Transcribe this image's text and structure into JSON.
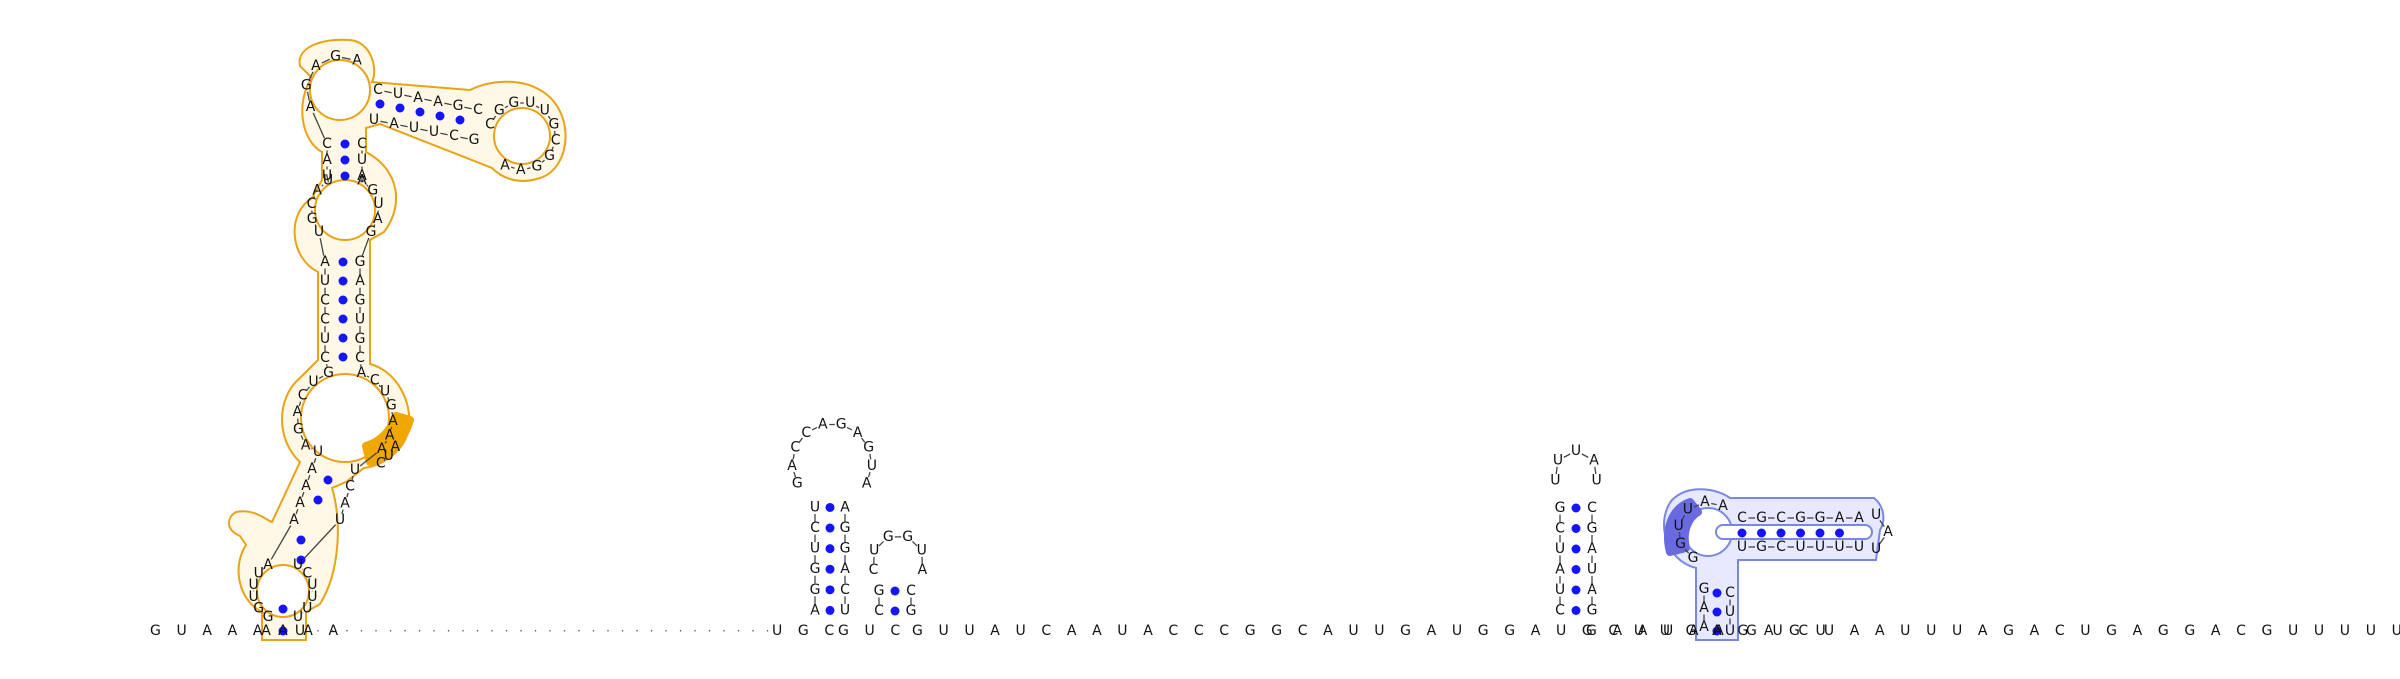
{
  "colors": {
    "pair_dot": "#1414ff",
    "backbone": "#444444",
    "gold_outline": "#e8a317",
    "gold_fill": "#fff8e6",
    "gold_highlight": "#f0a800",
    "blue_outline": "#7a86e6",
    "blue_fill": "#e6e9ff",
    "blue_highlight": "#6a6ae0",
    "text": "#111111"
  },
  "baseline": {
    "left_tail": "G U A A A A A A",
    "left_stem_base": [
      "A",
      "U"
    ],
    "gap_before_helix1": "U G C",
    "helix1_join": "G U C",
    "mid_run_1": "G U U A U C A A U A C C C G G C A U U G A U G G A U G C U U G A G A G U",
    "mid_run_2": "G A A U A A",
    "right_tail": "G U C U A A U U U A G A C U G A G G A C G U U U U U"
  },
  "hairpin_1": {
    "left": [
      "A",
      "G",
      "G",
      "U",
      "C",
      "U"
    ],
    "right": [
      "U",
      "C",
      "A",
      "G",
      "G",
      "A"
    ],
    "loop": [
      "G",
      "A",
      "C",
      "C",
      "A",
      "G",
      "A",
      "G",
      "U",
      "A"
    ]
  },
  "hairpin_2": {
    "left": [
      "C",
      "G"
    ],
    "right": [
      "G",
      "C"
    ],
    "loop": [
      "C",
      "U",
      "G",
      "G",
      "U",
      "A"
    ]
  },
  "hairpin_3": {
    "left": [
      "C",
      "U",
      "A",
      "U",
      "C",
      "G"
    ],
    "right": [
      "G",
      "A",
      "U",
      "A",
      "G",
      "C"
    ],
    "loop": [
      "U",
      "U",
      "U",
      "A",
      "U"
    ]
  },
  "blue_domain": {
    "stem_left": [
      "A",
      "A",
      "G"
    ],
    "stem_right": [
      "U",
      "U",
      "C"
    ],
    "arm_top": [
      "C",
      "G",
      "C",
      "G",
      "G",
      "A",
      "A"
    ],
    "arm_bottom": [
      "U",
      "G",
      "C",
      "U",
      "U",
      "U",
      "U"
    ],
    "arm_tip": [
      "U",
      "A",
      "U"
    ],
    "bulge": [
      "G",
      "G",
      "U",
      "U",
      "A",
      "A"
    ]
  },
  "gold_domain": {
    "sequence_left": [
      "G",
      "G",
      "U",
      "U",
      "U",
      "A",
      "A",
      "A",
      "A",
      "A",
      "U",
      "A",
      "G",
      "A",
      "C",
      "U",
      "G",
      "C",
      "U",
      "C",
      "C",
      "U",
      "A",
      "U",
      "G",
      "C",
      "A",
      "U",
      "U",
      "A",
      "C",
      "A",
      "G",
      "A",
      "G",
      "A"
    ],
    "sequence_right": [
      "U",
      "U",
      "U",
      "U",
      "C",
      "U",
      "U",
      "A",
      "C",
      "U",
      "A",
      "A",
      "A",
      "G",
      "U",
      "C",
      "A",
      "C",
      "G",
      "U",
      "G",
      "A",
      "G",
      "G",
      "A",
      "U",
      "G",
      "A",
      "A",
      "U",
      "C",
      "A",
      "U"
    ],
    "upper_arm_top": [
      "C",
      "U",
      "A",
      "A",
      "G",
      "C"
    ],
    "upper_arm_bottom": [
      "U",
      "A",
      "U",
      "U",
      "C",
      "G"
    ],
    "upper_loop": [
      "C",
      "G",
      "G",
      "U",
      "U",
      "G",
      "C",
      "G",
      "G",
      "A",
      "A"
    ],
    "highlight": [
      "C",
      "U",
      "A"
    ]
  }
}
